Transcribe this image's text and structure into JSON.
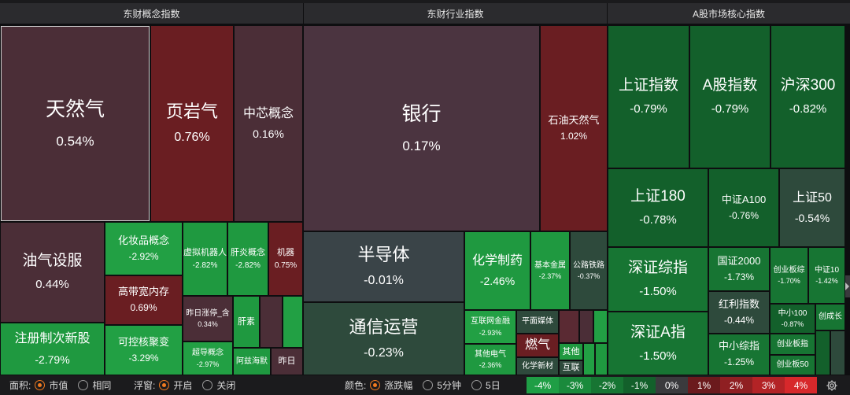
{
  "sections": {
    "concept": "东财概念指数",
    "industry": "东财行业指数",
    "core": "A股市场核心指数"
  },
  "cells": {
    "tianranqi": {
      "name": "天然气",
      "value": "0.54%"
    },
    "yeyanqi": {
      "name": "页岩气",
      "value": "0.76%"
    },
    "zhongxin": {
      "name": "中芯概念",
      "value": "0.16%"
    },
    "youqi": {
      "name": "油气设服",
      "value": "0.44%"
    },
    "huazhuang": {
      "name": "化妆品概念",
      "value": "-2.92%"
    },
    "xuni": {
      "name": "虚拟机器人",
      "value": "-2.82%"
    },
    "ganyan": {
      "name": "肝炎概念",
      "value": "-2.82%"
    },
    "jiqi": {
      "name": "机器",
      "value": "0.75%"
    },
    "gaodai": {
      "name": "高带宽内存",
      "value": "0.69%"
    },
    "zuori": {
      "name": "昨日涨停_含",
      "value": "0.34%"
    },
    "gansu": {
      "name": "肝素"
    },
    "zhuce": {
      "name": "注册制次新股",
      "value": "-2.79%"
    },
    "kekong": {
      "name": "可控核聚变",
      "value": "-3.29%"
    },
    "chaodao": {
      "name": "超导概念",
      "value": "-2.97%"
    },
    "asihai": {
      "name": "阿兹海默"
    },
    "zuori2": {
      "name": "昨日"
    },
    "yinhang": {
      "name": "银行",
      "value": "0.17%"
    },
    "shiyou": {
      "name": "石油天然气",
      "value": "1.02%"
    },
    "bandaoti": {
      "name": "半导体",
      "value": "-0.01%"
    },
    "huaxue": {
      "name": "化学制药",
      "value": "-2.46%"
    },
    "jiben": {
      "name": "基本金属",
      "value": "-2.37%"
    },
    "gonglu": {
      "name": "公路铁路",
      "value": "-0.37%"
    },
    "tongxin": {
      "name": "通信运营",
      "value": "-0.23%"
    },
    "hulianwang": {
      "name": "互联网金融",
      "value": "-2.93%"
    },
    "pingmian": {
      "name": "平面媒体"
    },
    "ranqi": {
      "name": "燃气"
    },
    "qitadianqi": {
      "name": "其他电气",
      "value": "-2.36%"
    },
    "huaxuexin": {
      "name": "化学新材"
    },
    "qita": {
      "name": "其他"
    },
    "hulian": {
      "name": "互联"
    },
    "shangzheng": {
      "name": "上证指数",
      "value": "-0.79%"
    },
    "agu": {
      "name": "A股指数",
      "value": "-0.79%"
    },
    "hushen300": {
      "name": "沪深300",
      "value": "-0.82%"
    },
    "sz180": {
      "name": "上证180",
      "value": "-0.78%"
    },
    "zza100": {
      "name": "中证A100",
      "value": "-0.76%"
    },
    "sz50": {
      "name": "上证50",
      "value": "-0.54%"
    },
    "szzz": {
      "name": "深证综指",
      "value": "-1.50%"
    },
    "gz2000": {
      "name": "国证2000",
      "value": "-1.73%"
    },
    "cyz": {
      "name": "创业板综",
      "value": "-1.70%"
    },
    "zz10": {
      "name": "中证10",
      "value": "-1.42%"
    },
    "hongli": {
      "name": "红利指数",
      "value": "-0.44%"
    },
    "zx100": {
      "name": "中小100",
      "value": "-0.87%"
    },
    "cyc": {
      "name": "创成长"
    },
    "szA": {
      "name": "深证A指",
      "value": "-1.50%"
    },
    "zxzz": {
      "name": "中小综指",
      "value": "-1.25%"
    },
    "cyb": {
      "name": "创业板指"
    },
    "cyb50": {
      "name": "创业板50"
    }
  },
  "controls": {
    "area_label": "面积:",
    "area_options": [
      "市值",
      "相同"
    ],
    "float_label": "浮窗:",
    "float_options": [
      "开启",
      "关闭"
    ],
    "color_label": "颜色:",
    "color_options": [
      "涨跌幅",
      "5分钟",
      "5日"
    ],
    "legend": [
      "-4%",
      "-3%",
      "-2%",
      "-1%",
      "0%",
      "1%",
      "2%",
      "3%",
      "4%"
    ],
    "legend_colors": [
      "#1f9e45",
      "#1a8a3c",
      "#177533",
      "#13602b",
      "#3a3a3d",
      "#6b1a1d",
      "#8f1f22",
      "#b32326",
      "#d7282b"
    ],
    "gear_icon": "gear-icon"
  },
  "colors": {
    "accent": "#f07a20",
    "header_bg": "#2b2b2e"
  }
}
